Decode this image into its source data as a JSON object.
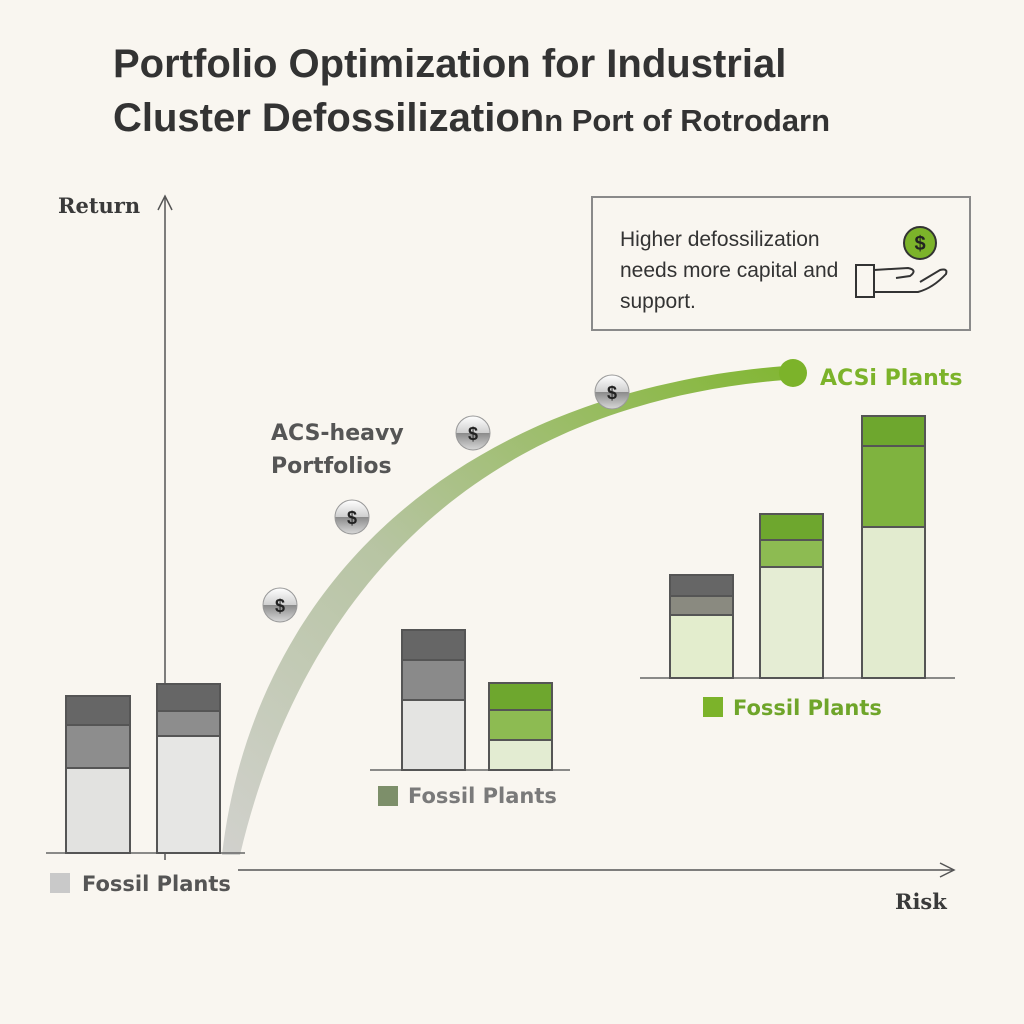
{
  "title": {
    "line1": "Portfolio Optimization for Industrial",
    "line2_main": "Cluster Defossilization",
    "line2_sub": "n Port of Rotrodarn"
  },
  "axes": {
    "y_label": "Return",
    "x_label": "Risk"
  },
  "note": {
    "text": "Higher defossilization needs more capital and support.",
    "icon": "hand-holding-dollar-icon"
  },
  "curve": {
    "label": "ACS-heavy Portfolios",
    "end_label": "ACSi Plants",
    "marker_icon": "dollar-coin-icon",
    "colors": {
      "start": "#c8c8c4",
      "end": "#7cb32a"
    }
  },
  "groups": [
    {
      "legend": "Fossil Plants",
      "legend_color": "#c9c9c9",
      "text_color": "#555555"
    },
    {
      "legend": "Fossil Plants",
      "legend_color": "#7d8f6a",
      "text_color": "#7a7a7a"
    },
    {
      "legend": "Fossil Plants",
      "legend_color": "#7cb32a",
      "text_color": "#6fa52a"
    }
  ],
  "colors": {
    "accent": "#7cb32a",
    "background": "#f9f6f0"
  }
}
